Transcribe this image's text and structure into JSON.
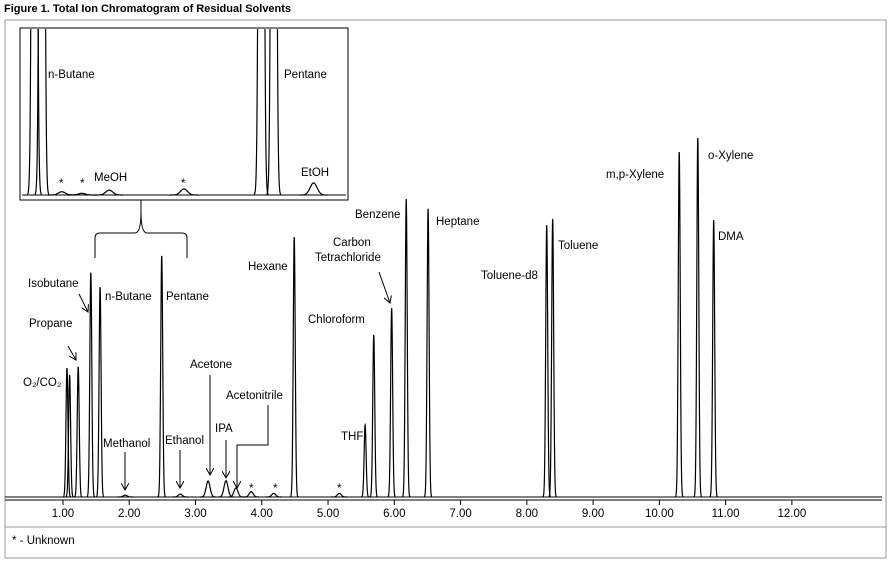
{
  "title": "Figure 1. Total Ion Chromatogram of Residual Solvents",
  "footnote": "* - Unknown",
  "chart_data": [
    {
      "type": "chromatogram",
      "xlim": [
        0.125,
        13.36
      ],
      "ylim": [
        0,
        100
      ],
      "xticks": [
        {
          "value": 1,
          "label": "1.00"
        },
        {
          "value": 2,
          "label": "2.00"
        },
        {
          "value": 3,
          "label": "3.00"
        },
        {
          "value": 4,
          "label": "4.00"
        },
        {
          "value": 5,
          "label": "5.00"
        },
        {
          "value": 6,
          "label": "6.00"
        },
        {
          "value": 7,
          "label": "7.00"
        },
        {
          "value": 8,
          "label": "8.00"
        },
        {
          "value": 9,
          "label": "9.00"
        },
        {
          "value": 10,
          "label": "10.00"
        },
        {
          "value": 11,
          "label": "11.00"
        },
        {
          "value": 12,
          "label": "12.00"
        }
      ],
      "color": "#000000",
      "peaks": [
        {
          "time": 1.06,
          "height": 35.6
        },
        {
          "time": 1.1,
          "height": 33.7
        },
        {
          "time": 1.23,
          "height": 36
        },
        {
          "time": 1.42,
          "height": 62
        },
        {
          "time": 1.56,
          "height": 58
        },
        {
          "time": 1.94,
          "height": 0.5
        },
        {
          "time": 2.49,
          "height": 66.6
        },
        {
          "time": 2.77,
          "height": 0.8
        },
        {
          "time": 3.19,
          "height": 4.4
        },
        {
          "time": 3.46,
          "height": 4.5
        },
        {
          "time": 3.61,
          "height": 2.5
        },
        {
          "time": 3.84,
          "height": 1.5
        },
        {
          "time": 4.18,
          "height": 1
        },
        {
          "time": 4.49,
          "height": 71.8
        },
        {
          "time": 5.17,
          "height": 1
        },
        {
          "time": 5.56,
          "height": 19.9
        },
        {
          "time": 5.69,
          "height": 44.8
        },
        {
          "time": 5.96,
          "height": 52.2
        },
        {
          "time": 6.18,
          "height": 82.3
        },
        {
          "time": 6.51,
          "height": 79.6
        },
        {
          "time": 8.3,
          "height": 75.1
        },
        {
          "time": 8.39,
          "height": 76.8
        },
        {
          "time": 10.3,
          "height": 95.3
        },
        {
          "time": 10.58,
          "height": 99.2
        },
        {
          "time": 10.82,
          "height": 76.5
        }
      ],
      "annotations": [
        "O₂/CO₂",
        "Propane",
        "Isobutane",
        "n-Butane",
        "Pentane",
        "Methanol",
        "Ethanol",
        "Acetone",
        "IPA",
        "Acetonitrile",
        "*",
        "*",
        "*",
        "Hexane",
        "THF",
        "Chloroform",
        "Carbon",
        "Tetrachloride",
        "Benzene",
        "Heptane",
        "Toluene-d8",
        "Toluene",
        "m,p-Xylene",
        "o-Xylene",
        "DMA"
      ]
    },
    {
      "type": "chromatogram",
      "xlim": [
        1.48,
        2.78
      ],
      "ylim": [
        0,
        10
      ],
      "color": "#000000",
      "peaks": [
        {
          "time": 1.53,
          "height": 100
        },
        {
          "time": 1.56,
          "height": 100
        },
        {
          "time": 1.64,
          "height": 0.2
        },
        {
          "time": 1.72,
          "height": 0.1
        },
        {
          "time": 1.83,
          "height": 0.3
        },
        {
          "time": 2.13,
          "height": 0.37
        },
        {
          "time": 2.44,
          "height": 100
        },
        {
          "time": 2.49,
          "height": 100
        },
        {
          "time": 2.65,
          "height": 0.74
        }
      ],
      "annotations": [
        "n-Butane",
        "*",
        "*",
        "MeOH",
        "*",
        "Pentane",
        "EtOH"
      ]
    }
  ]
}
